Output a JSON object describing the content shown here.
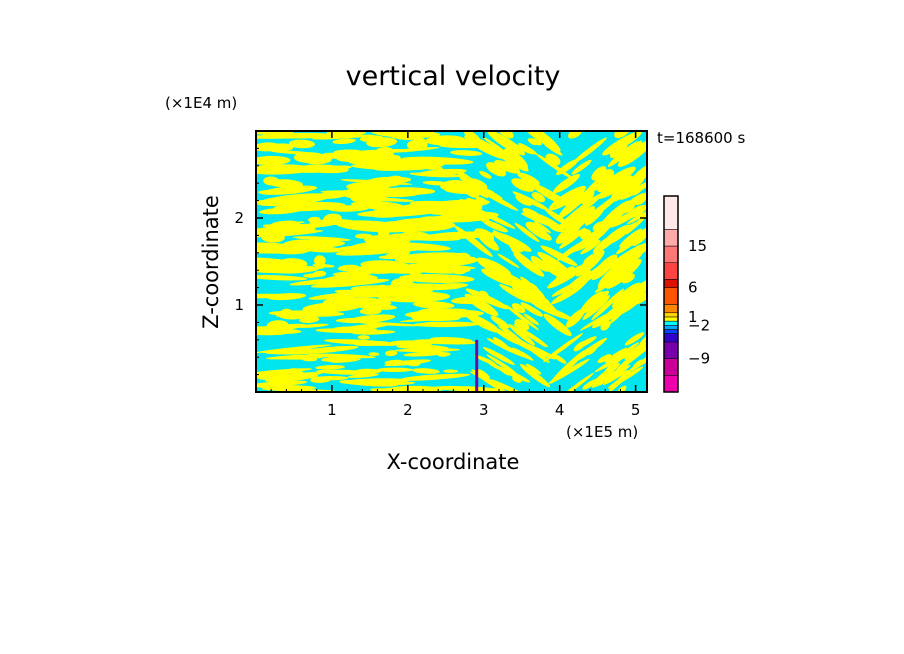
{
  "chart_data": {
    "type": "heatmap",
    "title": "vertical velocity",
    "xlabel": "X-coordinate",
    "ylabel": "Z-coordinate",
    "x_scale_label": "(×1E5 m)",
    "y_scale_label": "(×1E4 m)",
    "time_label": "t=168600 s",
    "xlim": [
      0,
      5.15
    ],
    "ylim": [
      0,
      3.0
    ],
    "x_ticks": [
      "1",
      "2",
      "3",
      "4",
      "5"
    ],
    "y_ticks": [
      "1",
      "2"
    ],
    "colorbar": {
      "tick_labels": [
        "15",
        "6",
        "1",
        "-2",
        "-9"
      ],
      "colors": [
        "#ee00aa",
        "#cc0099",
        "#7700aa",
        "#3300cc",
        "#0044ff",
        "#00aaff",
        "#00ffff",
        "#ffff00",
        "#ffd400",
        "#ff8800",
        "#ff5500",
        "#dd1100",
        "#ff4444",
        "#ff7777",
        "#ffaaaa",
        "#ffe8e8"
      ],
      "dominant_colors": {
        "updraft": "#ffff00",
        "downdraft": "#00e5ee"
      }
    }
  }
}
